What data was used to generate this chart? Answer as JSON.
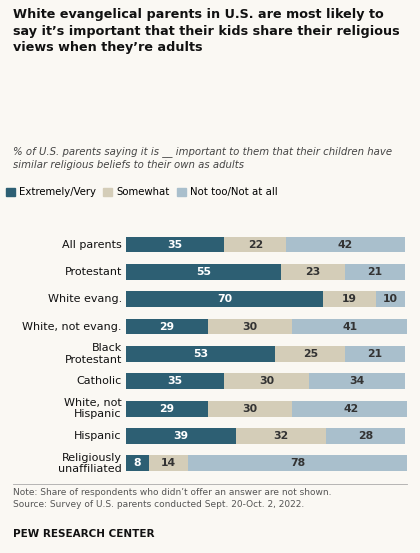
{
  "title": "White evangelical parents in U.S. are most likely to\nsay it’s important that their kids share their religious\nviews when they’re adults",
  "subtitle": "% of U.S. parents saying it is __ important to them that their children have\nsimilar religious beliefs to their own as adults",
  "categories": [
    "All parents",
    "Protestant",
    "White evang.",
    "White, not evang.",
    "Black\nProtestant",
    "Catholic",
    "White, not\nHispanic",
    "Hispanic",
    "Religiously\nunaffiliated"
  ],
  "extremely_very": [
    35,
    55,
    70,
    29,
    53,
    35,
    29,
    39,
    8
  ],
  "somewhat": [
    22,
    23,
    19,
    30,
    25,
    30,
    30,
    32,
    14
  ],
  "not_too": [
    42,
    21,
    10,
    41,
    21,
    34,
    42,
    28,
    78
  ],
  "color_extremely": "#2d5f73",
  "color_somewhat": "#d4cdb8",
  "color_not_too": "#a9bfcc",
  "legend_labels": [
    "Extremely/Very",
    "Somewhat",
    "Not too/Not at all"
  ],
  "note": "Note: Share of respondents who didn’t offer an answer are not shown.\nSource: Survey of U.S. parents conducted Sept. 20-Oct. 2, 2022.",
  "source_label": "PEW RESEARCH CENTER",
  "background_color": "#faf8f3"
}
